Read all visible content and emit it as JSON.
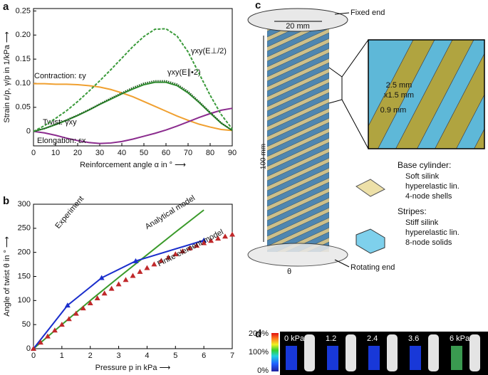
{
  "chart_data": [
    {
      "type": "line",
      "xlabel": "Reinforcement angle α in °  ⟶",
      "ylabel": "Strain ε/p, γ/p in 1/kPa ⟶",
      "x": [
        0,
        5,
        10,
        15,
        20,
        25,
        30,
        35,
        40,
        45,
        50,
        55,
        60,
        65,
        70,
        75,
        80,
        85,
        90
      ],
      "xlim": [
        0,
        90
      ],
      "xticks": [
        0,
        10,
        20,
        30,
        40,
        50,
        60,
        70,
        80,
        90
      ],
      "ylim": [
        -0.03,
        0.255
      ],
      "yticks": [
        0,
        0.05,
        {
          "value": 0.1,
          "label": "0.10"
        },
        0.15,
        {
          "value": 0.2,
          "label": "0.20"
        },
        0.25
      ],
      "series": [
        {
          "name": "Contraction: εy",
          "color": "#f0a030",
          "style": "solid",
          "values": [
            0.099,
            0.099,
            0.098,
            0.098,
            0.097,
            0.095,
            0.092,
            0.087,
            0.08,
            0.072,
            0.062,
            0.052,
            0.042,
            0.032,
            0.023,
            0.015,
            0.009,
            0.004,
            0.002
          ]
        },
        {
          "name": "Elongation: εx",
          "color": "#8b2c8e",
          "style": "solid",
          "values": [
            0,
            -0.003,
            -0.008,
            -0.014,
            -0.019,
            -0.023,
            -0.025,
            -0.024,
            -0.021,
            -0.016,
            -0.01,
            -0.004,
            0.003,
            0.011,
            0.02,
            0.029,
            0.037,
            0.044,
            0.048
          ]
        },
        {
          "name": "Twist: γxy",
          "color": "#2e8b2e",
          "style": "solid",
          "values": [
            0,
            0.006,
            0.014,
            0.023,
            0.033,
            0.044,
            0.056,
            0.067,
            0.078,
            0.088,
            0.097,
            0.102,
            0.102,
            0.095,
            0.08,
            0.06,
            0.038,
            0.017,
            0.002
          ]
        },
        {
          "name": "γxy(E∥•2)",
          "color": "#1e5a1e",
          "style": "dotted",
          "values": [
            0,
            0.006,
            0.015,
            0.024,
            0.034,
            0.045,
            0.057,
            0.069,
            0.08,
            0.091,
            0.1,
            0.105,
            0.105,
            0.098,
            0.083,
            0.062,
            0.04,
            0.018,
            0.002
          ]
        },
        {
          "name": "γxy(E⊥/2)",
          "color": "#3a9a3a",
          "style": "dashed",
          "values": [
            0,
            0.012,
            0.027,
            0.043,
            0.062,
            0.083,
            0.105,
            0.128,
            0.152,
            0.176,
            0.197,
            0.212,
            0.213,
            0.198,
            0.165,
            0.12,
            0.075,
            0.035,
            0.005
          ]
        }
      ]
    },
    {
      "type": "line",
      "xlabel": "Pressure p in kPa  ⟶",
      "ylabel": "Angle of twist θ in °  ⟶",
      "xlim": [
        0,
        7
      ],
      "xticks": [
        0,
        1,
        2,
        3,
        4,
        5,
        6,
        7
      ],
      "ylim": [
        0,
        300
      ],
      "yticks": [
        0,
        50,
        100,
        150,
        200,
        250,
        300
      ],
      "series": [
        {
          "name": "Analytical model",
          "color": "#3a9a2a",
          "style": "solid",
          "marker": "none",
          "x": [
            0,
            1,
            2,
            3,
            4,
            5,
            6
          ],
          "values": [
            0,
            50,
            100,
            148,
            195,
            242,
            288
          ]
        },
        {
          "name": "Experiment",
          "color": "#1a2ecc",
          "style": "solid",
          "marker": "triangle",
          "x": [
            0,
            1.2,
            2.4,
            3.6,
            6
          ],
          "values": [
            0,
            90,
            147,
            182,
            225
          ]
        },
        {
          "name": "Finite element model",
          "color": "#c0282a",
          "style": "none",
          "marker": "triangle",
          "x": [
            0,
            0.25,
            0.5,
            0.75,
            1,
            1.25,
            1.5,
            1.75,
            2,
            2.25,
            2.5,
            2.75,
            3,
            3.25,
            3.5,
            3.75,
            4,
            4.25,
            4.5,
            4.75,
            5,
            5.25,
            5.5,
            5.75,
            6,
            6.25,
            6.5,
            6.75,
            7
          ],
          "values": [
            0,
            13.0,
            25.7,
            38.0,
            50.0,
            61.7,
            73.0,
            84.0,
            94.6,
            105.0,
            114.9,
            124.6,
            133.9,
            142.9,
            151.5,
            159.8,
            167.8,
            175.4,
            182.7,
            189.6,
            196.3,
            202.5,
            208.5,
            214.1,
            219.4,
            224.3,
            228.9,
            233.2,
            237.1
          ]
        }
      ]
    }
  ],
  "panel_labels": [
    "a",
    "b",
    "c",
    "d"
  ],
  "diagram_c": {
    "fixed_end": "Fixed end",
    "diameter": "20 mm",
    "height": "100 mm",
    "stripe_size": [
      "2.5 mm",
      "x1.5 mm"
    ],
    "gap": "0.9 mm",
    "base": [
      "Base cylinder:",
      "Soft silink",
      "hyperelastic lin.",
      "4-node shells"
    ],
    "stripes": [
      "Stripes:",
      "Stiff silink",
      "hyperelastic lin.",
      "8-node solids"
    ],
    "rotating_end": "Rotating end",
    "angle": "θ"
  },
  "panel_d": {
    "colorbar": [
      "200%",
      "100%",
      "0%"
    ],
    "pressures": [
      "0 kPa",
      "1.2",
      "2.4",
      "3.6",
      "6 kPa"
    ]
  }
}
